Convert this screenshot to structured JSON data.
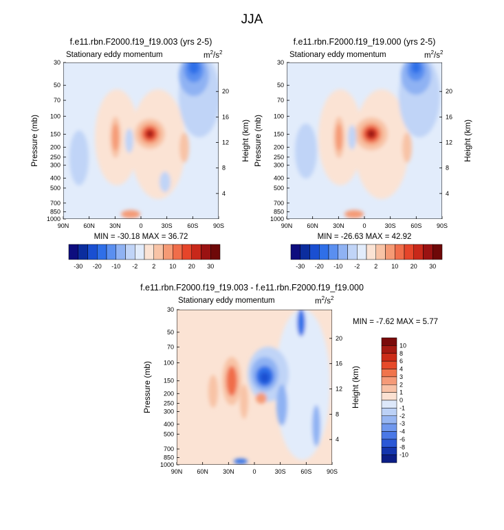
{
  "figure": {
    "title": "JJA"
  },
  "chart_data": [
    {
      "type": "heatmap",
      "title": "f.e11.rbn.F2000.f19_f19.003 (yrs 2-5)",
      "left_label": "Stationary eddy momentum",
      "units_main": "m",
      "units_sup1": "2",
      "units_mid": "/s",
      "units_sup2": "2",
      "ylabel": "Pressure (mb)",
      "ylabel_right": "Height (km)",
      "x_ticks": [
        "90N",
        "60N",
        "30N",
        "0",
        "30S",
        "60S",
        "90S"
      ],
      "x_values": [
        90,
        60,
        30,
        0,
        -30,
        -60,
        -90
      ],
      "y_ticks_pressure": [
        30,
        50,
        70,
        100,
        150,
        200,
        250,
        300,
        400,
        500,
        700,
        850,
        1000
      ],
      "y_ticks_height": [
        20,
        16,
        12,
        8,
        4
      ],
      "ylim_pressure": [
        1000,
        30
      ],
      "min_max": "MIN = -30.18  MAX = 36.72",
      "colorbar_labels": [
        "-30",
        "-20",
        "-10",
        "-2",
        "2",
        "10",
        "20",
        "30"
      ],
      "colorbar_levels": [
        -30,
        -20,
        -10,
        -2,
        2,
        10,
        20,
        30
      ]
    },
    {
      "type": "heatmap",
      "title": "f.e11.rbn.F2000.f19_f19.000 (yrs 2-5)",
      "left_label": "Stationary eddy momentum",
      "units_main": "m",
      "units_sup1": "2",
      "units_mid": "/s",
      "units_sup2": "2",
      "ylabel": "Pressure (mb)",
      "ylabel_right": "Height (km)",
      "x_ticks": [
        "90N",
        "60N",
        "30N",
        "0",
        "30S",
        "60S",
        "90S"
      ],
      "x_values": [
        90,
        60,
        30,
        0,
        -30,
        -60,
        -90
      ],
      "y_ticks_pressure": [
        30,
        50,
        70,
        100,
        150,
        200,
        250,
        300,
        400,
        500,
        700,
        850,
        1000
      ],
      "y_ticks_height": [
        20,
        16,
        12,
        8,
        4
      ],
      "ylim_pressure": [
        1000,
        30
      ],
      "min_max": "MIN = -26.63  MAX = 42.92",
      "colorbar_labels": [
        "-30",
        "-20",
        "-10",
        "-2",
        "2",
        "10",
        "20",
        "30"
      ],
      "colorbar_levels": [
        -30,
        -20,
        -10,
        -2,
        2,
        10,
        20,
        30
      ]
    },
    {
      "type": "heatmap",
      "title": "f.e11.rbn.F2000.f19_f19.003 - f.e11.rbn.F2000.f19_f19.000",
      "left_label": "Stationary eddy momentum",
      "units_main": "m",
      "units_sup1": "2",
      "units_mid": "/s",
      "units_sup2": "2",
      "ylabel": "Pressure (mb)",
      "ylabel_right": "Height (km)",
      "x_ticks": [
        "90N",
        "60N",
        "30N",
        "0",
        "30S",
        "60S",
        "90S"
      ],
      "x_values": [
        90,
        60,
        30,
        0,
        -30,
        -60,
        -90
      ],
      "y_ticks_pressure": [
        30,
        50,
        70,
        100,
        150,
        200,
        250,
        300,
        400,
        500,
        700,
        850,
        1000
      ],
      "y_ticks_height": [
        20,
        16,
        12,
        8,
        4
      ],
      "ylim_pressure": [
        1000,
        30
      ],
      "min_max": "MIN = -7.62  MAX = 5.77",
      "colorbar_labels": [
        "10",
        "8",
        "6",
        "4",
        "3",
        "2",
        "1",
        "0",
        "-1",
        "-2",
        "-3",
        "-4",
        "-6",
        "-8",
        "-10"
      ],
      "colorbar_levels": [
        10,
        8,
        6,
        4,
        3,
        2,
        1,
        0,
        -1,
        -2,
        -3,
        -4,
        -6,
        -8,
        -10
      ]
    }
  ],
  "colors": {
    "h_bar": [
      "#0d0d7e",
      "#0b2d9e",
      "#1a4fd1",
      "#2f6fe8",
      "#5a8ff0",
      "#8fb2f3",
      "#c0d4f7",
      "#e2ecfb",
      "#fbe3d4",
      "#f8c3a6",
      "#f59a75",
      "#f06d4a",
      "#e6452a",
      "#c8281a",
      "#9a1212",
      "#6e0808"
    ],
    "v_bar": [
      "#7a0a0a",
      "#a61a12",
      "#cc2c18",
      "#e64a2a",
      "#f0744c",
      "#f59a78",
      "#f8c1a6",
      "#fbe1d2",
      "#dde8fa",
      "#bcd1f6",
      "#97b6f2",
      "#7098ee",
      "#4a78e6",
      "#2b58d6",
      "#1435ad",
      "#0c1e86"
    ]
  }
}
